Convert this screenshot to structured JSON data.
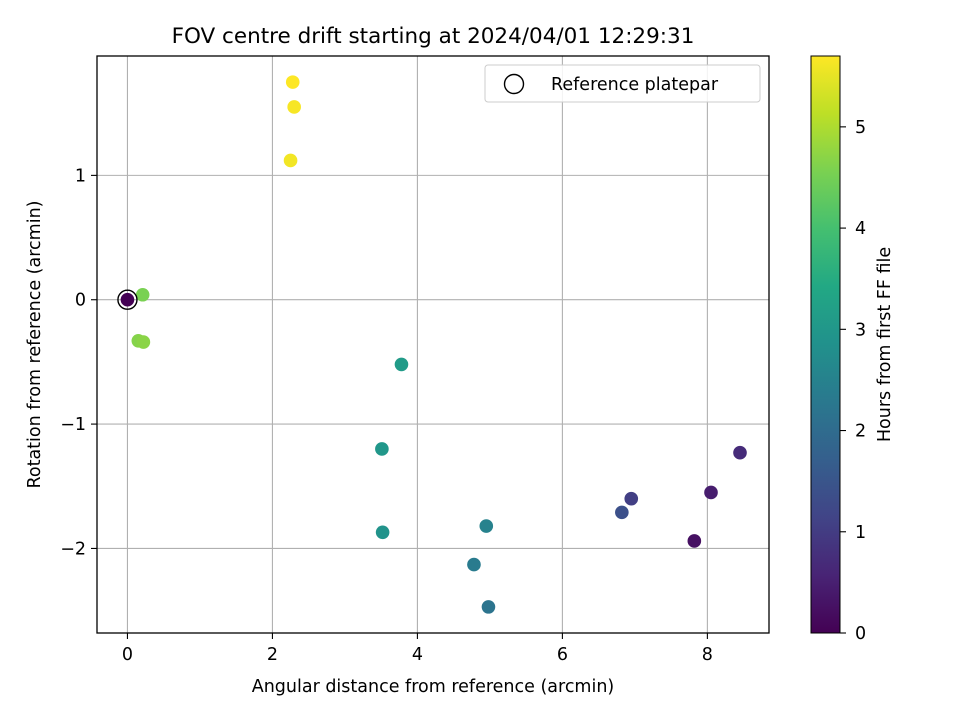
{
  "chart_data": {
    "type": "scatter",
    "title": "FOV centre drift starting at 2024/04/01 12:29:31",
    "xlabel": "Angular distance from reference (arcmin)",
    "ylabel": "Rotation from reference (arcmin)",
    "xlim": [
      -0.42,
      8.85
    ],
    "ylim": [
      -2.68,
      1.96
    ],
    "xticks": [
      0,
      2,
      4,
      6,
      8
    ],
    "xtick_labels": [
      "0",
      "2",
      "4",
      "6",
      "8"
    ],
    "yticks": [
      -2,
      -1,
      0,
      1
    ],
    "ytick_labels": [
      "−2",
      "−1",
      "0",
      "1"
    ],
    "grid": true,
    "legend": {
      "placement": "top-right",
      "label": "Reference platepar"
    },
    "reference_point": {
      "x": 0,
      "y": 0
    },
    "colorbar": {
      "label": "Hours from first FF file",
      "colormap": "viridis",
      "range": [
        0,
        5.7
      ],
      "ticks": [
        0,
        1,
        2,
        3,
        4,
        5
      ],
      "tick_labels": [
        "0",
        "1",
        "2",
        "3",
        "4",
        "5"
      ]
    },
    "points": [
      {
        "x": 0.0,
        "y": 0.0,
        "hours": 0.0
      },
      {
        "x": 7.82,
        "y": -1.94,
        "hours": 0.25
      },
      {
        "x": 8.05,
        "y": -1.55,
        "hours": 0.45
      },
      {
        "x": 8.45,
        "y": -1.23,
        "hours": 0.7
      },
      {
        "x": 6.95,
        "y": -1.6,
        "hours": 1.05
      },
      {
        "x": 6.82,
        "y": -1.71,
        "hours": 1.4
      },
      {
        "x": 4.98,
        "y": -2.47,
        "hours": 2.2
      },
      {
        "x": 4.78,
        "y": -2.13,
        "hours": 2.35
      },
      {
        "x": 4.95,
        "y": -1.82,
        "hours": 2.5
      },
      {
        "x": 3.52,
        "y": -1.87,
        "hours": 2.9
      },
      {
        "x": 3.51,
        "y": -1.2,
        "hours": 3.0
      },
      {
        "x": 3.78,
        "y": -0.52,
        "hours": 3.1
      },
      {
        "x": 0.21,
        "y": 0.04,
        "hours": 4.55
      },
      {
        "x": 0.15,
        "y": -0.33,
        "hours": 4.65
      },
      {
        "x": 0.22,
        "y": -0.34,
        "hours": 4.7
      },
      {
        "x": 2.25,
        "y": 1.12,
        "hours": 5.6
      },
      {
        "x": 2.3,
        "y": 1.55,
        "hours": 5.65
      },
      {
        "x": 2.28,
        "y": 1.75,
        "hours": 5.7
      }
    ]
  }
}
